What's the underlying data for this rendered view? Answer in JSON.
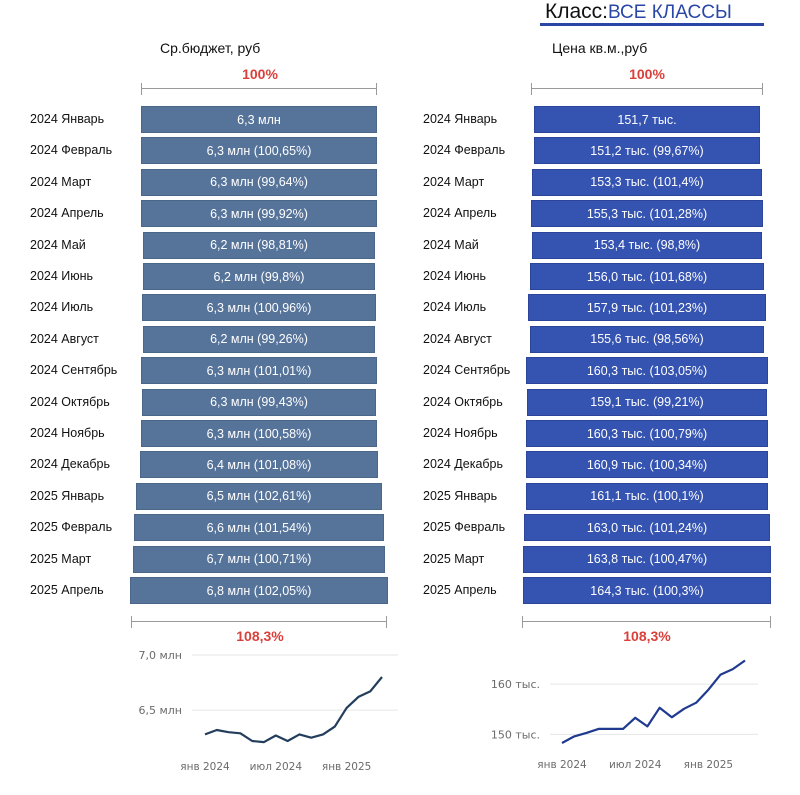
{
  "header": {
    "class_label": "Класс:",
    "class_value": "ВСЕ КЛАССЫ",
    "accent": "#2a47a8"
  },
  "left": {
    "title": "Ср.бюджет, руб",
    "top_pct": "100%",
    "bottom_pct": "108,3%",
    "bar_color": "#56739a"
  },
  "right": {
    "title": "Цена кв.м.,руб",
    "top_pct": "100%",
    "bottom_pct": "108,3%",
    "bar_color": "#3553b0"
  },
  "rows": [
    {
      "label": "2024 Январь",
      "budget": "6,3 млн",
      "price": "151,7 тыс."
    },
    {
      "label": "2024 Февраль",
      "budget": "6,3 млн (100,65%)",
      "price": "151,2 тыс. (99,67%)"
    },
    {
      "label": "2024 Март",
      "budget": "6,3 млн (99,64%)",
      "price": "153,3 тыс. (101,4%)"
    },
    {
      "label": "2024 Апрель",
      "budget": "6,3 млн (99,92%)",
      "price": "155,3 тыс. (101,28%)"
    },
    {
      "label": "2024 Май",
      "budget": "6,2 млн (98,81%)",
      "price": "153,4 тыс. (98,8%)"
    },
    {
      "label": "2024 Июнь",
      "budget": "6,2 млн (99,8%)",
      "price": "156,0 тыс. (101,68%)"
    },
    {
      "label": "2024 Июль",
      "budget": "6,3 млн (100,96%)",
      "price": "157,9 тыс. (101,23%)"
    },
    {
      "label": "2024 Август",
      "budget": "6,2 млн (99,26%)",
      "price": "155,6 тыс. (98,56%)"
    },
    {
      "label": "2024 Сентябрь",
      "budget": "6,3 млн (101,01%)",
      "price": "160,3 тыс. (103,05%)"
    },
    {
      "label": "2024 Октябрь",
      "budget": "6,3 млн (99,43%)",
      "price": "159,1 тыс. (99,21%)"
    },
    {
      "label": "2024 Ноябрь",
      "budget": "6,3 млн (100,58%)",
      "price": "160,3 тыс. (100,79%)"
    },
    {
      "label": "2024 Декабрь",
      "budget": "6,4 млн (101,08%)",
      "price": "160,9 тыс. (100,34%)"
    },
    {
      "label": "2025 Январь",
      "budget": "6,5 млн (102,61%)",
      "price": "161,1 тыс. (100,1%)"
    },
    {
      "label": "2025 Февраль",
      "budget": "6,6 млн (101,54%)",
      "price": "163,0 тыс. (101,24%)"
    },
    {
      "label": "2025 Март",
      "budget": "6,7 млн (100,71%)",
      "price": "163,8 тыс. (100,47%)"
    },
    {
      "label": "2025 Апрель",
      "budget": "6,8 млн (102,05%)",
      "price": "164,3 тыс. (100,3%)"
    }
  ],
  "chart_data": [
    {
      "type": "bar",
      "title": "Ср.бюджет, руб",
      "orientation": "horizontal-centered",
      "categories": [
        "2024 Январь",
        "2024 Февраль",
        "2024 Март",
        "2024 Апрель",
        "2024 Май",
        "2024 Июнь",
        "2024 Июль",
        "2024 Август",
        "2024 Сентябрь",
        "2024 Октябрь",
        "2024 Ноябрь",
        "2024 Декабрь",
        "2025 Январь",
        "2025 Февраль",
        "2025 Март",
        "2025 Апрель"
      ],
      "values": [
        6.28,
        6.32,
        6.3,
        6.29,
        6.22,
        6.21,
        6.27,
        6.22,
        6.28,
        6.25,
        6.28,
        6.35,
        6.52,
        6.62,
        6.67,
        6.8
      ],
      "mom_pct": [
        100,
        100.65,
        99.64,
        99.92,
        98.81,
        99.8,
        100.96,
        99.26,
        101.01,
        99.43,
        100.58,
        101.08,
        102.61,
        101.54,
        100.71,
        102.05
      ],
      "unit": "млн руб",
      "total_change": "108,3%"
    },
    {
      "type": "bar",
      "title": "Цена кв.м.,руб",
      "orientation": "horizontal-centered",
      "categories": [
        "2024 Январь",
        "2024 Февраль",
        "2024 Март",
        "2024 Апрель",
        "2024 Май",
        "2024 Июнь",
        "2024 Июль",
        "2024 Август",
        "2024 Сентябрь",
        "2024 Октябрь",
        "2024 Ноябрь",
        "2024 Декабрь",
        "2025 Январь",
        "2025 Февраль",
        "2025 Март",
        "2025 Апрель"
      ],
      "values": [
        151.7,
        151.2,
        153.3,
        155.3,
        153.4,
        156.0,
        157.9,
        155.6,
        160.3,
        159.1,
        160.3,
        160.9,
        161.1,
        163.0,
        163.8,
        164.3
      ],
      "mom_pct": [
        100,
        99.67,
        101.4,
        101.28,
        98.8,
        101.68,
        101.23,
        98.56,
        103.05,
        99.21,
        100.79,
        100.34,
        100.1,
        101.24,
        100.47,
        100.3
      ],
      "unit": "тыс. руб",
      "total_change": "108,3%"
    },
    {
      "type": "line",
      "title": "",
      "x": [
        "2024-01",
        "2024-02",
        "2024-03",
        "2024-04",
        "2024-05",
        "2024-06",
        "2024-07",
        "2024-08",
        "2024-09",
        "2024-10",
        "2024-11",
        "2024-12",
        "2025-01",
        "2025-02",
        "2025-03",
        "2025-04"
      ],
      "y": [
        6.28,
        6.32,
        6.3,
        6.29,
        6.22,
        6.21,
        6.27,
        6.22,
        6.28,
        6.25,
        6.28,
        6.35,
        6.52,
        6.62,
        6.67,
        6.8
      ],
      "xticks": [
        "янв 2024",
        "июл 2024",
        "янв 2025"
      ],
      "yticks": [
        {
          "value": 6.5,
          "label": "6,5 млн"
        },
        {
          "value": 7.0,
          "label": "7,0 млн"
        }
      ],
      "ylim": [
        6.12,
        7.0
      ],
      "color": "#233d5c",
      "grid": true
    },
    {
      "type": "line",
      "title": "",
      "x": [
        "2024-01",
        "2024-02",
        "2024-03",
        "2024-04",
        "2024-05",
        "2024-06",
        "2024-07",
        "2024-08",
        "2024-09",
        "2024-10",
        "2024-11",
        "2024-12",
        "2025-01",
        "2025-02",
        "2025-03",
        "2025-04"
      ],
      "y": [
        148.3,
        149.6,
        150.3,
        151.1,
        151.1,
        151.1,
        153.3,
        151.6,
        155.3,
        153.4,
        155.1,
        156.3,
        158.9,
        161.9,
        163.0,
        164.7
      ],
      "xticks": [
        "янв 2024",
        "июл 2024",
        "янв 2025"
      ],
      "yticks": [
        {
          "value": 150,
          "label": "150 тыс."
        },
        {
          "value": 160,
          "label": "160 тыс."
        }
      ],
      "ylim": [
        146.5,
        166
      ],
      "color": "#1f3a8f",
      "grid": true
    }
  ]
}
